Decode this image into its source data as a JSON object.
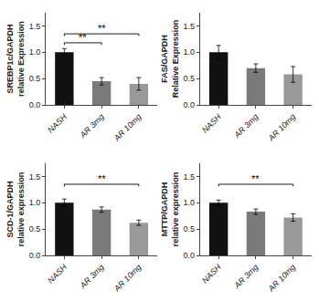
{
  "chart_data": [
    {
      "type": "bar",
      "ylabel": "SREBP1c/GAPDH\nrelative Expression",
      "categories": [
        "NASH",
        "AR 3mg",
        "AR 10mg"
      ],
      "values": [
        1.0,
        0.45,
        0.4
      ],
      "errors": [
        0.07,
        0.07,
        0.12
      ],
      "colors": [
        "#111111",
        "#7a7a7a",
        "#999999"
      ],
      "ylim": [
        0,
        1.75
      ],
      "yticks": [
        {
          "value": 0.0,
          "label": "0.0"
        },
        0.5,
        {
          "value": 1.0,
          "label": "1.0"
        },
        1.5
      ],
      "grid": false,
      "annotations": [
        {
          "text": "**",
          "from": "NASH",
          "to": "AR 3mg",
          "y": 1.18
        },
        {
          "text": "**",
          "from": "NASH",
          "to": "AR 10mg",
          "y": 1.35
        }
      ]
    },
    {
      "type": "bar",
      "ylabel": "FAS/GAPDH\nRelative Expression",
      "categories": [
        "NASH",
        "AR 3mg",
        "AR 10mg"
      ],
      "values": [
        1.0,
        0.7,
        0.58
      ],
      "errors": [
        0.13,
        0.08,
        0.15
      ],
      "colors": [
        "#111111",
        "#7a7a7a",
        "#999999"
      ],
      "ylim": [
        0,
        1.75
      ],
      "yticks": [
        {
          "value": 0.0,
          "label": "0.0"
        },
        0.5,
        {
          "value": 1.0,
          "label": "1.0"
        },
        1.5
      ],
      "grid": false,
      "annotations": []
    },
    {
      "type": "bar",
      "ylabel": "SCD-1/GAPDH\nrelative expression",
      "categories": [
        "NASH",
        "AR 3mg",
        "AR 10mg"
      ],
      "values": [
        1.0,
        0.87,
        0.62
      ],
      "errors": [
        0.07,
        0.05,
        0.05
      ],
      "colors": [
        "#111111",
        "#7a7a7a",
        "#999999"
      ],
      "ylim": [
        0,
        1.75
      ],
      "yticks": [
        {
          "value": 0.0,
          "label": "0.0"
        },
        0.5,
        {
          "value": 1.0,
          "label": "1.0"
        },
        1.5
      ],
      "grid": false,
      "annotations": [
        {
          "text": "**",
          "from": "NASH",
          "to": "AR 10mg",
          "y": 1.35
        }
      ]
    },
    {
      "type": "bar",
      "ylabel": "MTTP/GAPDH\nrelative expression",
      "categories": [
        "NASH",
        "AR 3mg",
        "AR 10mg"
      ],
      "values": [
        1.0,
        0.83,
        0.72
      ],
      "errors": [
        0.05,
        0.05,
        0.07
      ],
      "colors": [
        "#111111",
        "#7a7a7a",
        "#999999"
      ],
      "ylim": [
        0,
        1.75
      ],
      "yticks": [
        {
          "value": 0.0,
          "label": "0.0"
        },
        0.5,
        {
          "value": 1.0,
          "label": "1.0"
        },
        1.5
      ],
      "grid": false,
      "annotations": [
        {
          "text": "**",
          "from": "NASH",
          "to": "AR 10mg",
          "y": 1.35
        }
      ]
    }
  ]
}
